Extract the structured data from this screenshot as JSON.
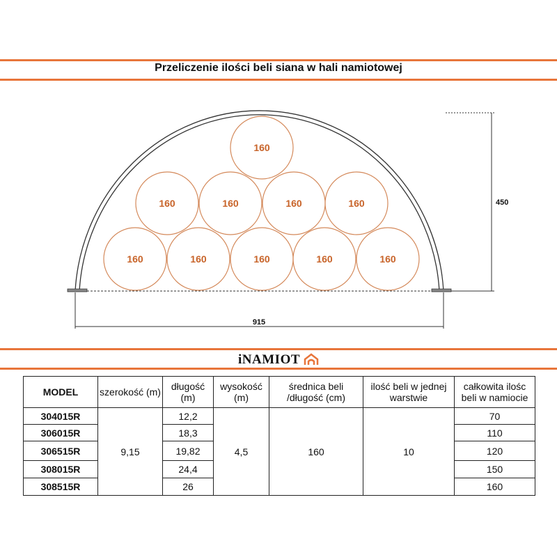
{
  "title": "Przeliczenie ilości beli siana w hali namiotowej",
  "diagram": {
    "bale_label": "160",
    "height_label": "450",
    "width_label": "915",
    "bale_color": "#d4895a",
    "accent": "#e8753a"
  },
  "logo": "iNAMIOT",
  "table": {
    "headers": [
      "MODEL",
      "szerokość (m)",
      "długość (m)",
      "wysokość (m)",
      "średnica beli /długość (cm)",
      "ilość beli w jednej warstwie",
      "całkowita ilośc beli w namiocie"
    ],
    "models": [
      "304015R",
      "306015R",
      "306515R",
      "308015R",
      "308515R"
    ],
    "szerokosc": "9,15",
    "dlugosc": [
      "12,2",
      "18,3",
      "19,82",
      "24,4",
      "26"
    ],
    "wysokosc": "4,5",
    "srednica": "160",
    "warstwa": "10",
    "calkowita": [
      "70",
      "110",
      "120",
      "150",
      "160"
    ]
  }
}
